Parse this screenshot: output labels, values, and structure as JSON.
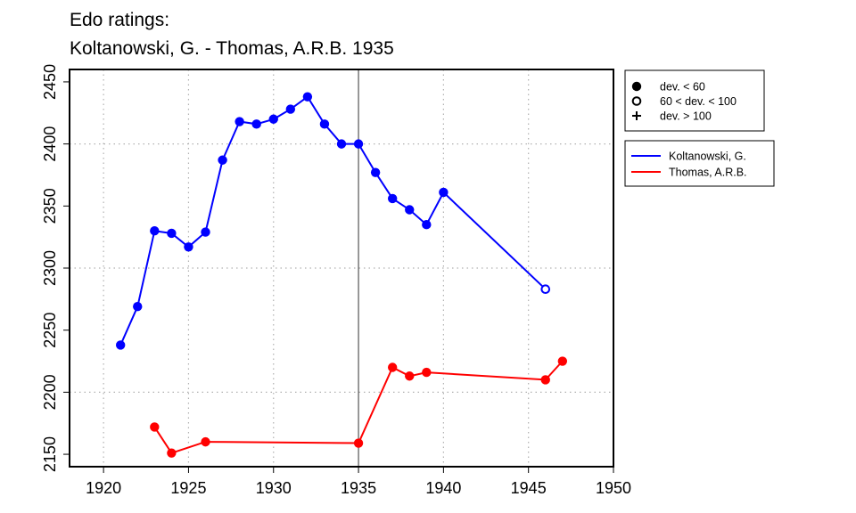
{
  "chart_data": {
    "type": "line",
    "title": "Edo ratings:",
    "subtitle": "Koltanowski, G. - Thomas, A.R.B. 1935",
    "xlabel": "",
    "ylabel": "",
    "xlim": [
      1918,
      1950
    ],
    "ylim": [
      2140,
      2460
    ],
    "x_ticks": [
      1920,
      1925,
      1930,
      1935,
      1940,
      1945,
      1950
    ],
    "y_ticks": [
      2150,
      2200,
      2250,
      2300,
      2350,
      2400,
      2450
    ],
    "grid": true,
    "reference_line_x": 1935,
    "marker_legend": [
      {
        "marker": "filled-circle",
        "label": "dev. < 60"
      },
      {
        "marker": "open-circle",
        "label": "60 < dev. < 100"
      },
      {
        "marker": "plus",
        "label": "dev. > 100"
      }
    ],
    "legend_position": "right",
    "series": [
      {
        "name": "Koltanowski, G.",
        "color": "#0000ff",
        "points": [
          {
            "x": 1921,
            "y": 2238,
            "marker": "filled-circle"
          },
          {
            "x": 1922,
            "y": 2269,
            "marker": "filled-circle"
          },
          {
            "x": 1923,
            "y": 2330,
            "marker": "filled-circle"
          },
          {
            "x": 1924,
            "y": 2328,
            "marker": "filled-circle"
          },
          {
            "x": 1925,
            "y": 2317,
            "marker": "filled-circle"
          },
          {
            "x": 1926,
            "y": 2329,
            "marker": "filled-circle"
          },
          {
            "x": 1927,
            "y": 2387,
            "marker": "filled-circle"
          },
          {
            "x": 1928,
            "y": 2418,
            "marker": "filled-circle"
          },
          {
            "x": 1929,
            "y": 2416,
            "marker": "filled-circle"
          },
          {
            "x": 1930,
            "y": 2420,
            "marker": "filled-circle"
          },
          {
            "x": 1931,
            "y": 2428,
            "marker": "filled-circle"
          },
          {
            "x": 1932,
            "y": 2438,
            "marker": "filled-circle"
          },
          {
            "x": 1933,
            "y": 2416,
            "marker": "filled-circle"
          },
          {
            "x": 1934,
            "y": 2400,
            "marker": "filled-circle"
          },
          {
            "x": 1935,
            "y": 2400,
            "marker": "filled-circle"
          },
          {
            "x": 1936,
            "y": 2377,
            "marker": "filled-circle"
          },
          {
            "x": 1937,
            "y": 2356,
            "marker": "filled-circle"
          },
          {
            "x": 1938,
            "y": 2347,
            "marker": "filled-circle"
          },
          {
            "x": 1939,
            "y": 2335,
            "marker": "filled-circle"
          },
          {
            "x": 1940,
            "y": 2361,
            "marker": "filled-circle"
          },
          {
            "x": 1946,
            "y": 2283,
            "marker": "open-circle"
          }
        ]
      },
      {
        "name": "Thomas, A.R.B.",
        "color": "#ff0000",
        "points": [
          {
            "x": 1923,
            "y": 2172,
            "marker": "filled-circle"
          },
          {
            "x": 1924,
            "y": 2151,
            "marker": "filled-circle"
          },
          {
            "x": 1926,
            "y": 2160,
            "marker": "filled-circle"
          },
          {
            "x": 1935,
            "y": 2159,
            "marker": "filled-circle"
          },
          {
            "x": 1937,
            "y": 2220,
            "marker": "filled-circle"
          },
          {
            "x": 1938,
            "y": 2213,
            "marker": "filled-circle"
          },
          {
            "x": 1939,
            "y": 2216,
            "marker": "filled-circle"
          },
          {
            "x": 1946,
            "y": 2210,
            "marker": "filled-circle"
          },
          {
            "x": 1947,
            "y": 2225,
            "marker": "filled-circle"
          }
        ]
      }
    ]
  }
}
